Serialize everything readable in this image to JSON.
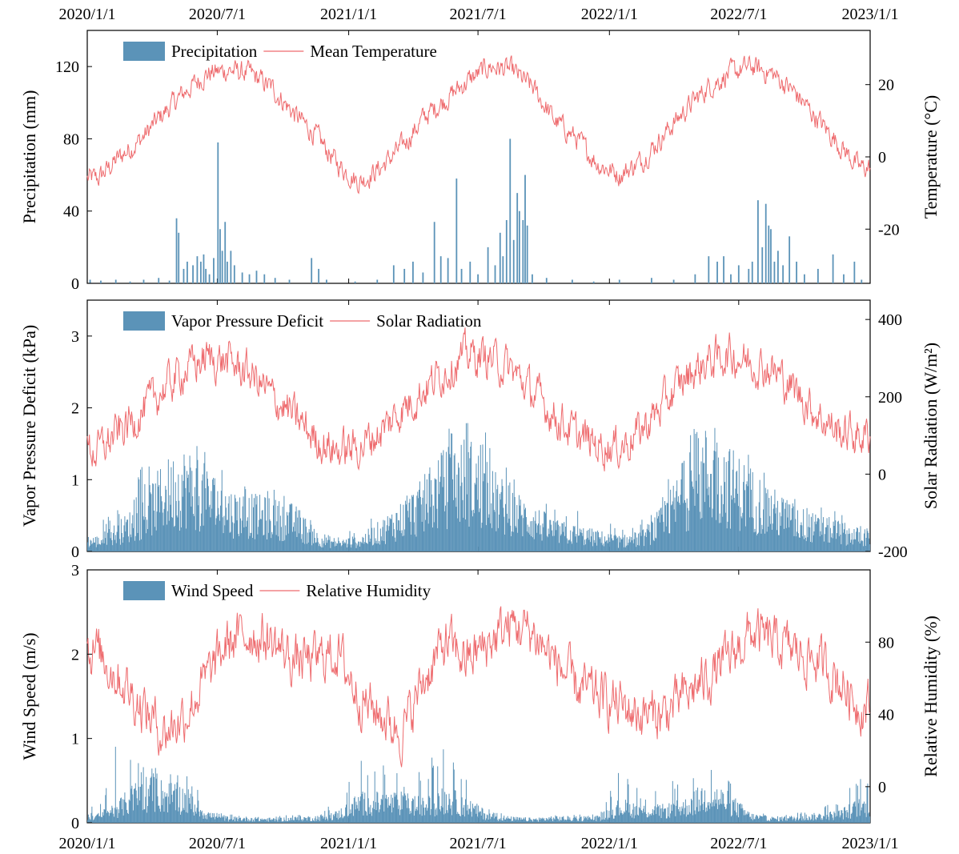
{
  "colors": {
    "bars": "#5b93b8",
    "line": "#ee6b6e"
  },
  "top_axis_dates": [
    "2020/1/1",
    "2020/7/1",
    "2021/1/1",
    "2021/7/1",
    "2022/1/1",
    "2022/7/1",
    "2023/1/1"
  ],
  "bottom_axis_dates": [
    "2020/1/1",
    "2020/7/1",
    "2021/1/1",
    "2021/7/1",
    "2022/1/1",
    "2022/7/1",
    "2023/1/1"
  ],
  "chart_data": [
    {
      "type": "bar+line",
      "legend": [
        "Precipitation",
        "Mean Temperature"
      ],
      "legend_position": "top-left",
      "ylabel_left": "Precipitation (mm)",
      "ylabel_right": "Temperature (°C)",
      "ylim_left": [
        0,
        140
      ],
      "ylim_right": [
        -35,
        35
      ],
      "yticks_left": [
        "0",
        "40",
        "80",
        "120"
      ],
      "yticks_right": [
        "-20",
        "0",
        "20"
      ],
      "x_range": [
        "2020/1/1",
        "2023/1/1"
      ],
      "bars": {
        "name": "Precipitation",
        "events": [
          [
            "2020/1/5",
            2
          ],
          [
            "2020/1/20",
            1.5
          ],
          [
            "2020/2/10",
            2
          ],
          [
            "2020/3/1",
            1
          ],
          [
            "2020/3/20",
            2
          ],
          [
            "2020/4/10",
            3
          ],
          [
            "2020/4/25",
            1.5
          ],
          [
            "2020/5/5",
            36
          ],
          [
            "2020/5/8",
            28
          ],
          [
            "2020/5/15",
            8
          ],
          [
            "2020/5/20",
            12
          ],
          [
            "2020/5/28",
            10
          ],
          [
            "2020/6/3",
            15
          ],
          [
            "2020/6/8",
            12
          ],
          [
            "2020/6/12",
            16
          ],
          [
            "2020/6/15",
            8
          ],
          [
            "2020/6/20",
            5
          ],
          [
            "2020/6/26",
            14
          ],
          [
            "2020/7/2",
            78
          ],
          [
            "2020/7/5",
            30
          ],
          [
            "2020/7/8",
            18
          ],
          [
            "2020/7/12",
            34
          ],
          [
            "2020/7/15",
            12
          ],
          [
            "2020/7/20",
            18
          ],
          [
            "2020/7/25",
            10
          ],
          [
            "2020/8/5",
            6
          ],
          [
            "2020/8/15",
            5
          ],
          [
            "2020/8/25",
            7
          ],
          [
            "2020/9/5",
            5
          ],
          [
            "2020/9/20",
            3
          ],
          [
            "2020/10/10",
            2
          ],
          [
            "2020/11/10",
            14
          ],
          [
            "2020/11/20",
            8
          ],
          [
            "2020/12/1",
            2
          ],
          [
            "2021/1/10",
            1
          ],
          [
            "2021/2/10",
            2
          ],
          [
            "2021/3/5",
            10
          ],
          [
            "2021/3/20",
            8
          ],
          [
            "2021/4/1",
            12
          ],
          [
            "2021/4/15",
            6
          ],
          [
            "2021/5/1",
            34
          ],
          [
            "2021/5/10",
            15
          ],
          [
            "2021/5/20",
            14
          ],
          [
            "2021/6/1",
            58
          ],
          [
            "2021/6/8",
            8
          ],
          [
            "2021/6/20",
            12
          ],
          [
            "2021/7/1",
            5
          ],
          [
            "2021/7/15",
            20
          ],
          [
            "2021/7/25",
            10
          ],
          [
            "2021/8/1",
            28
          ],
          [
            "2021/8/5",
            15
          ],
          [
            "2021/8/10",
            35
          ],
          [
            "2021/8/15",
            80
          ],
          [
            "2021/8/20",
            24
          ],
          [
            "2021/8/25",
            50
          ],
          [
            "2021/8/28",
            40
          ],
          [
            "2021/9/2",
            35
          ],
          [
            "2021/9/5",
            60
          ],
          [
            "2021/9/8",
            32
          ],
          [
            "2021/9/15",
            5
          ],
          [
            "2021/10/5",
            3
          ],
          [
            "2021/11/10",
            2
          ],
          [
            "2021/12/10",
            1
          ],
          [
            "2022/1/15",
            2
          ],
          [
            "2022/3/1",
            3
          ],
          [
            "2022/4/1",
            2
          ],
          [
            "2022/5/1",
            5
          ],
          [
            "2022/5/20",
            15
          ],
          [
            "2022/6/1",
            12
          ],
          [
            "2022/6/10",
            15
          ],
          [
            "2022/6/20",
            5
          ],
          [
            "2022/7/1",
            10
          ],
          [
            "2022/7/15",
            8
          ],
          [
            "2022/7/20",
            12
          ],
          [
            "2022/7/28",
            46
          ],
          [
            "2022/8/3",
            20
          ],
          [
            "2022/8/8",
            44
          ],
          [
            "2022/8/12",
            32
          ],
          [
            "2022/8/15",
            30
          ],
          [
            "2022/8/20",
            12
          ],
          [
            "2022/8/25",
            18
          ],
          [
            "2022/9/1",
            10
          ],
          [
            "2022/9/10",
            26
          ],
          [
            "2022/9/20",
            12
          ],
          [
            "2022/10/1",
            5
          ],
          [
            "2022/10/20",
            8
          ],
          [
            "2022/11/10",
            16
          ],
          [
            "2022/11/25",
            5
          ],
          [
            "2022/12/10",
            12
          ],
          [
            "2022/12/20",
            2
          ]
        ]
      },
      "line": {
        "name": "Mean Temperature",
        "monthly": [
          -6,
          0,
          5,
          12,
          18,
          23,
          24,
          23,
          19,
          12,
          6,
          -2,
          -7,
          -3,
          3,
          11,
          16,
          21,
          25,
          24,
          19,
          10,
          5,
          -2,
          -5,
          -1,
          6,
          13,
          19,
          23,
          25,
          23,
          18,
          11,
          4,
          -3
        ]
      }
    },
    {
      "type": "bar+line",
      "legend": [
        "Vapor Pressure Deficit",
        "Solar Radiation"
      ],
      "legend_position": "top-left",
      "ylabel_left": "Vapor Pressure Deficit (kPa)",
      "ylabel_right": "Solar Radiation (W/m²)",
      "ylim_left": [
        0,
        3.5
      ],
      "ylim_right": [
        -200,
        450
      ],
      "yticks_left": [
        "0",
        "1",
        "2",
        "3"
      ],
      "yticks_right": [
        "-200",
        "0",
        "200",
        "400"
      ],
      "x_range": [
        "2020/1/1",
        "2023/1/1"
      ],
      "bars": {
        "name": "Vapor Pressure Deficit",
        "monthly_mean": [
          0.15,
          0.3,
          0.5,
          0.85,
          1.0,
          0.8,
          0.6,
          0.55,
          0.5,
          0.45,
          0.2,
          0.12,
          0.15,
          0.3,
          0.5,
          0.7,
          1.0,
          1.1,
          0.8,
          0.6,
          0.45,
          0.3,
          0.25,
          0.2,
          0.15,
          0.2,
          0.45,
          0.9,
          1.2,
          1.0,
          0.8,
          0.6,
          0.45,
          0.35,
          0.3,
          0.22
        ],
        "monthly_max": [
          0.5,
          0.6,
          1.2,
          1.3,
          2.2,
          1.4,
          1.1,
          0.9,
          0.9,
          0.7,
          0.35,
          0.25,
          0.4,
          0.6,
          0.9,
          1.2,
          1.7,
          1.9,
          1.6,
          1.1,
          0.8,
          0.6,
          0.6,
          0.5,
          0.3,
          0.5,
          0.9,
          1.7,
          2.0,
          1.9,
          1.3,
          1.0,
          0.8,
          0.7,
          0.6,
          0.4
        ]
      },
      "line": {
        "name": "Solar Radiation",
        "monthly": [
          60,
          110,
          160,
          220,
          270,
          300,
          290,
          260,
          200,
          150,
          90,
          60,
          70,
          110,
          170,
          220,
          270,
          310,
          300,
          270,
          210,
          150,
          100,
          75,
          70,
          115,
          180,
          250,
          290,
          310,
          290,
          270,
          220,
          160,
          110,
          100
        ]
      }
    },
    {
      "type": "bar+line",
      "legend": [
        "Wind Speed",
        "Relative Humidity"
      ],
      "legend_position": "top-left",
      "ylabel_left": "Wind Speed (m/s)",
      "ylabel_right": "Relative Humidity (%)",
      "ylim_left": [
        0,
        3
      ],
      "ylim_right": [
        -20,
        120
      ],
      "yticks_left": [
        "0",
        "1",
        "2",
        "3"
      ],
      "yticks_right": [
        "0",
        "40",
        "80"
      ],
      "x_range": [
        "2020/1/1",
        "2023/1/1"
      ],
      "bars": {
        "name": "Wind Speed",
        "monthly_mean": [
          0.08,
          0.2,
          0.4,
          0.35,
          0.3,
          0.1,
          0.05,
          0.05,
          0.04,
          0.05,
          0.06,
          0.1,
          0.25,
          0.25,
          0.25,
          0.2,
          0.3,
          0.2,
          0.08,
          0.05,
          0.04,
          0.06,
          0.05,
          0.06,
          0.2,
          0.15,
          0.15,
          0.2,
          0.35,
          0.25,
          0.08,
          0.05,
          0.06,
          0.08,
          0.1,
          0.2
        ],
        "monthly_max": [
          0.2,
          1.1,
          0.7,
          0.65,
          0.7,
          0.15,
          0.1,
          0.08,
          0.08,
          0.1,
          0.12,
          0.25,
          0.85,
          0.8,
          0.6,
          0.7,
          1.0,
          0.5,
          0.15,
          0.1,
          0.08,
          0.12,
          0.1,
          0.1,
          0.65,
          0.35,
          0.5,
          0.5,
          0.75,
          0.5,
          0.15,
          0.1,
          0.12,
          0.2,
          0.3,
          0.55
        ]
      },
      "line": {
        "name": "Relative Humidity",
        "monthly": [
          75,
          60,
          45,
          30,
          40,
          60,
          80,
          85,
          80,
          70,
          70,
          75,
          50,
          40,
          30,
          60,
          80,
          70,
          80,
          90,
          85,
          70,
          55,
          50,
          45,
          40,
          40,
          50,
          60,
          70,
          85,
          80,
          75,
          70,
          60,
          45
        ]
      }
    }
  ]
}
